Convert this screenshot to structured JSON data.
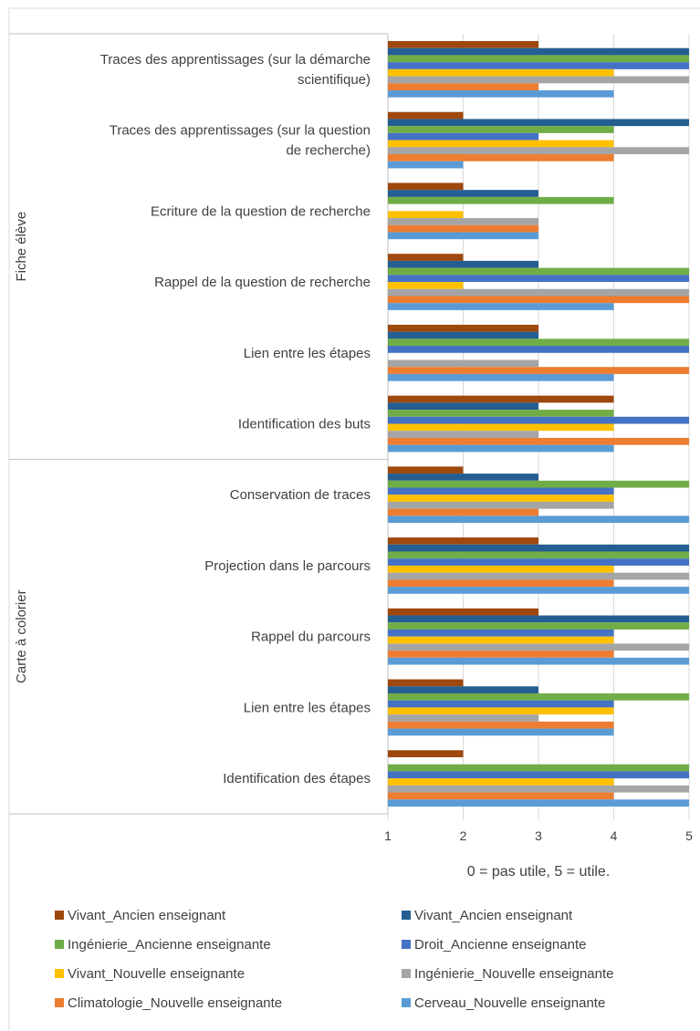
{
  "chart_data": {
    "type": "bar",
    "orientation": "horizontal",
    "xlabel": "0 = pas utile, 5 = utile.",
    "xlim": [
      1,
      5
    ],
    "xticks": [
      "1",
      "2",
      "3",
      "4",
      "5"
    ],
    "grid": true,
    "legend_position": "bottom",
    "groups": [
      {
        "label": "Fiche élève",
        "categories": [
          {
            "label": "Traces des apprentissages (sur la démarche scientifique)",
            "lines": [
              "Traces des apprentissages (sur la démarche",
              "scientifique)"
            ],
            "values": [
              3,
              5,
              5,
              5,
              4,
              5,
              3,
              4
            ]
          },
          {
            "label": "Traces des apprentissages (sur la question de recherche)",
            "lines": [
              "Traces des apprentissages (sur la question",
              "de recherche)"
            ],
            "values": [
              2,
              5,
              4,
              3,
              4,
              5,
              4,
              2
            ]
          },
          {
            "label": "Ecriture de la question de recherche",
            "lines": [
              "Ecriture de la question de recherche"
            ],
            "values": [
              2,
              3,
              4,
              1,
              2,
              3,
              3,
              3
            ]
          },
          {
            "label": "Rappel de la question de recherche",
            "lines": [
              "Rappel de la question de recherche"
            ],
            "values": [
              2,
              3,
              5,
              5,
              2,
              5,
              5,
              4
            ]
          },
          {
            "label": "Lien entre les étapes",
            "lines": [
              "Lien entre les étapes"
            ],
            "values": [
              3,
              3,
              5,
              5,
              1,
              3,
              5,
              4
            ]
          },
          {
            "label": "Identification des buts",
            "lines": [
              "Identification des buts"
            ],
            "values": [
              4,
              3,
              4,
              5,
              4,
              3,
              5,
              4
            ]
          }
        ]
      },
      {
        "label": "Carte à colorier",
        "categories": [
          {
            "label": "Conservation de traces",
            "lines": [
              "Conservation de traces"
            ],
            "values": [
              2,
              3,
              5,
              4,
              4,
              4,
              3,
              5
            ]
          },
          {
            "label": "Projection dans le parcours",
            "lines": [
              "Projection dans le parcours"
            ],
            "values": [
              3,
              5,
              5,
              5,
              4,
              5,
              4,
              5
            ]
          },
          {
            "label": "Rappel du parcours",
            "lines": [
              "Rappel du parcours"
            ],
            "values": [
              3,
              5,
              5,
              4,
              4,
              5,
              4,
              5
            ]
          },
          {
            "label": "Lien entre les étapes",
            "lines": [
              "Lien entre les étapes"
            ],
            "values": [
              2,
              3,
              5,
              4,
              4,
              3,
              4,
              4
            ]
          },
          {
            "label": "Identification des étapes",
            "lines": [
              "Identification des étapes"
            ],
            "values": [
              2,
              1,
              5,
              5,
              4,
              5,
              4,
              5
            ]
          }
        ]
      }
    ],
    "series": [
      {
        "name": "Vivant_Ancien enseignant",
        "color": "#9E480E"
      },
      {
        "name": "Vivant_Ancien enseignant",
        "color": "#255E91"
      },
      {
        "name": "Ingénierie_Ancienne enseignante",
        "color": "#70AD47"
      },
      {
        "name": "Droit_Ancienne enseignante",
        "color": "#4472C4"
      },
      {
        "name": "Vivant_Nouvelle enseignante",
        "color": "#FFC000"
      },
      {
        "name": "Ingénierie_Nouvelle enseignante",
        "color": "#A5A5A5"
      },
      {
        "name": "Climatologie_Nouvelle enseignante",
        "color": "#ED7D31"
      },
      {
        "name": "Cerveau_Nouvelle enseignante",
        "color": "#5B9BD5"
      }
    ]
  }
}
